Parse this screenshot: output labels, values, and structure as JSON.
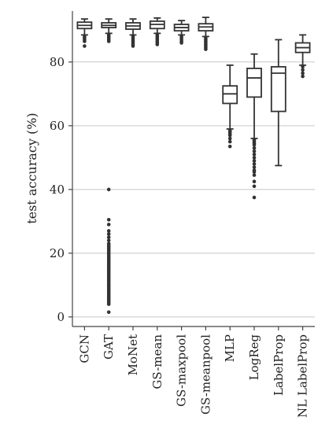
{
  "chart_data": {
    "type": "box",
    "title": "",
    "xlabel": "",
    "ylabel": "test accuracy (%)",
    "ylim": [
      -3,
      96
    ],
    "yticks": [
      0,
      20,
      40,
      60,
      80
    ],
    "grid": true,
    "categories": [
      "GCN",
      "GAT",
      "MoNet",
      "GS-mean",
      "GS-maxpool",
      "GS-meanpool",
      "MLP",
      "LogReg",
      "LabelProp",
      "NL LabelProp"
    ],
    "boxes": [
      {
        "min": 88.5,
        "q1": 90.5,
        "median": 91.5,
        "q3": 92.5,
        "max": 93.5,
        "outliers": [
          88,
          87.5,
          87,
          86.5,
          85
        ]
      },
      {
        "min": 89,
        "q1": 90.8,
        "median": 91.5,
        "q3": 92.3,
        "max": 93.5,
        "outliers": [
          88.5,
          88,
          87.5,
          87,
          86.5,
          40,
          30.5,
          29,
          27,
          26,
          25,
          24,
          23,
          22.5,
          22,
          21.5,
          21,
          20.5,
          20,
          19.5,
          19,
          18.5,
          18,
          17.5,
          17,
          16.5,
          16,
          15.5,
          15,
          14.5,
          14,
          13.5,
          13,
          12.5,
          12,
          11.5,
          11,
          10.5,
          10,
          9.5,
          9,
          8.5,
          8,
          7.5,
          7,
          6.5,
          6,
          5.5,
          5,
          4.5,
          4,
          1.5
        ]
      },
      {
        "min": 88.5,
        "q1": 90.3,
        "median": 91.3,
        "q3": 92.3,
        "max": 93.5,
        "outliers": [
          88,
          87.5,
          87,
          86.5,
          86,
          85.5,
          85
        ]
      },
      {
        "min": 89,
        "q1": 90.5,
        "median": 91.8,
        "q3": 92.8,
        "max": 93.8,
        "outliers": [
          88.5,
          88,
          87.5,
          87,
          86.5,
          86,
          85.5
        ]
      },
      {
        "min": 88.5,
        "q1": 89.8,
        "median": 90.8,
        "q3": 91.8,
        "max": 93,
        "outliers": [
          88,
          87.5,
          87,
          86.5,
          86
        ]
      },
      {
        "min": 88,
        "q1": 89.8,
        "median": 91,
        "q3": 92,
        "max": 94,
        "outliers": [
          87.5,
          87,
          86.5,
          86,
          85.5,
          85,
          84.5,
          84
        ]
      },
      {
        "min": 59,
        "q1": 67,
        "median": 70,
        "q3": 72.5,
        "max": 79,
        "outliers": [
          58.5,
          58,
          57.5,
          57,
          56,
          55,
          53.5
        ]
      },
      {
        "min": 56,
        "q1": 69,
        "median": 75,
        "q3": 78,
        "max": 82.5,
        "outliers": [
          55.5,
          55,
          54.5,
          54,
          53,
          52,
          51,
          50,
          49,
          48,
          47,
          46,
          45.5,
          44.5,
          42.5,
          41,
          37.5
        ]
      },
      {
        "min": 47.5,
        "q1": 64.5,
        "median": 76.5,
        "q3": 78.5,
        "max": 87,
        "outliers": []
      },
      {
        "min": 79,
        "q1": 83,
        "median": 84.5,
        "q3": 86,
        "max": 88.5,
        "outliers": [
          78.5,
          77.5,
          76.5,
          75.5
        ]
      }
    ]
  }
}
